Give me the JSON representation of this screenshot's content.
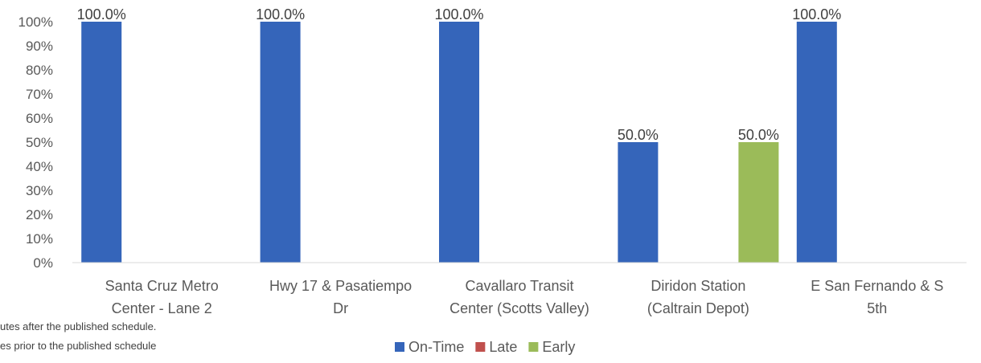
{
  "chart_data": {
    "type": "bar",
    "title": "",
    "xlabel": "",
    "ylabel": "",
    "ylim": [
      0,
      100
    ],
    "y_ticks": [
      "0%",
      "10%",
      "20%",
      "30%",
      "40%",
      "50%",
      "60%",
      "70%",
      "80%",
      "90%",
      "100%"
    ],
    "grid": false,
    "legend_position": "bottom",
    "categories": [
      [
        "Santa Cruz Metro",
        "Center - Lane 2"
      ],
      [
        "Hwy 17 & Pasatiempo",
        "Dr"
      ],
      [
        "Cavallaro Transit",
        "Center (Scotts Valley)"
      ],
      [
        "Diridon Station",
        "(Caltrain Depot)"
      ],
      [
        "E San Fernando & S",
        "5th"
      ]
    ],
    "series": [
      {
        "name": "On-Time",
        "color": "#3565BA",
        "values": [
          100,
          100,
          100,
          50,
          100
        ],
        "labels": [
          "100.0%",
          "100.0%",
          "100.0%",
          "50.0%",
          "100.0%"
        ]
      },
      {
        "name": "Late",
        "color": "#C0504D",
        "values": [
          0,
          0,
          0,
          0,
          0
        ],
        "labels": [
          "",
          "",
          "",
          "",
          ""
        ]
      },
      {
        "name": "Early",
        "color": "#9BBB59",
        "values": [
          0,
          0,
          0,
          50,
          0
        ],
        "labels": [
          "",
          "",
          "",
          "50.0%",
          ""
        ]
      }
    ]
  },
  "notes": [
    "utes after the published schedule.",
    "es prior to the published schedule"
  ]
}
